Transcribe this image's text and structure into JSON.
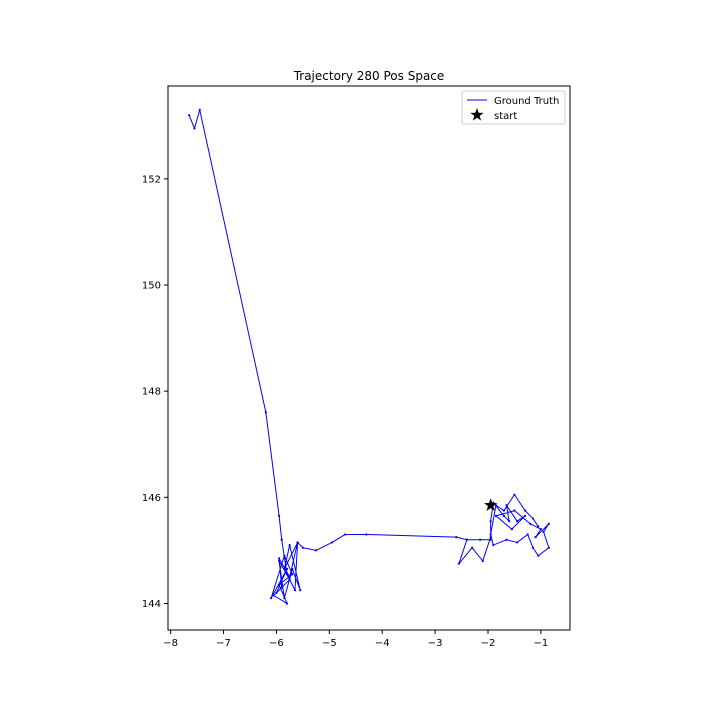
{
  "chart_data": {
    "type": "line",
    "title": "Trajectory 280 Pos Space",
    "xlabel": "",
    "ylabel": "",
    "xlim": [
      -8.05,
      -0.45
    ],
    "ylim": [
      143.5,
      153.75
    ],
    "xticks": [
      -8,
      -7,
      -6,
      -5,
      -4,
      -3,
      -2,
      -1
    ],
    "yticks": [
      144,
      146,
      148,
      150,
      152
    ],
    "grid": false,
    "legend_position": "top-right",
    "series": [
      {
        "name": "Ground Truth",
        "color": "#0000ff",
        "marker": "dot",
        "x": [
          -7.65,
          -7.55,
          -7.45,
          -6.2,
          -5.95,
          -5.9,
          -5.8,
          -5.65,
          -5.6,
          -5.75,
          -5.95,
          -5.9,
          -6.0,
          -5.8,
          -6.1,
          -5.85,
          -5.7,
          -5.95,
          -5.8,
          -6.05,
          -5.75,
          -5.95,
          -5.85,
          -5.7,
          -5.55,
          -5.75,
          -5.85,
          -5.6,
          -5.5,
          -5.25,
          -4.95,
          -4.7,
          -4.3,
          -2.6,
          -2.4,
          -2.15,
          -1.95,
          -2.4,
          -2.55,
          -2.3,
          -2.1,
          -1.95,
          -1.95,
          -1.9,
          -1.7,
          -1.6,
          -1.65,
          -1.45,
          -1.3,
          -1.55,
          -1.85,
          -1.5,
          -1.2,
          -1.0,
          -1.1,
          -0.85,
          -0.95,
          -0.85,
          -1.05,
          -1.15,
          -1.25,
          -1.45,
          -1.65,
          -1.9,
          -1.95,
          -1.85,
          -1.7,
          -1.5,
          -1.3,
          -1.15,
          -1.05
        ],
        "y": [
          153.2,
          152.95,
          153.3,
          147.6,
          145.65,
          145.2,
          144.55,
          144.25,
          145.15,
          144.5,
          144.85,
          144.3,
          144.2,
          144.65,
          144.1,
          144.9,
          144.55,
          144.35,
          144.0,
          144.15,
          144.45,
          144.8,
          144.1,
          144.65,
          144.25,
          145.1,
          144.65,
          145.15,
          145.05,
          145.0,
          145.15,
          145.3,
          145.3,
          145.25,
          145.2,
          145.2,
          145.2,
          145.2,
          144.75,
          145.05,
          144.8,
          145.25,
          145.55,
          145.9,
          145.65,
          145.55,
          145.85,
          145.55,
          145.65,
          145.4,
          145.65,
          145.75,
          145.5,
          145.4,
          145.25,
          145.5,
          145.35,
          145.05,
          144.9,
          145.05,
          145.3,
          145.15,
          145.2,
          145.1,
          145.3,
          145.85,
          145.75,
          146.05,
          145.75,
          145.6,
          145.45
        ]
      }
    ],
    "markers": [
      {
        "name": "start",
        "x": -1.95,
        "y": 145.85,
        "color": "#000000",
        "symbol": "star"
      }
    ]
  }
}
